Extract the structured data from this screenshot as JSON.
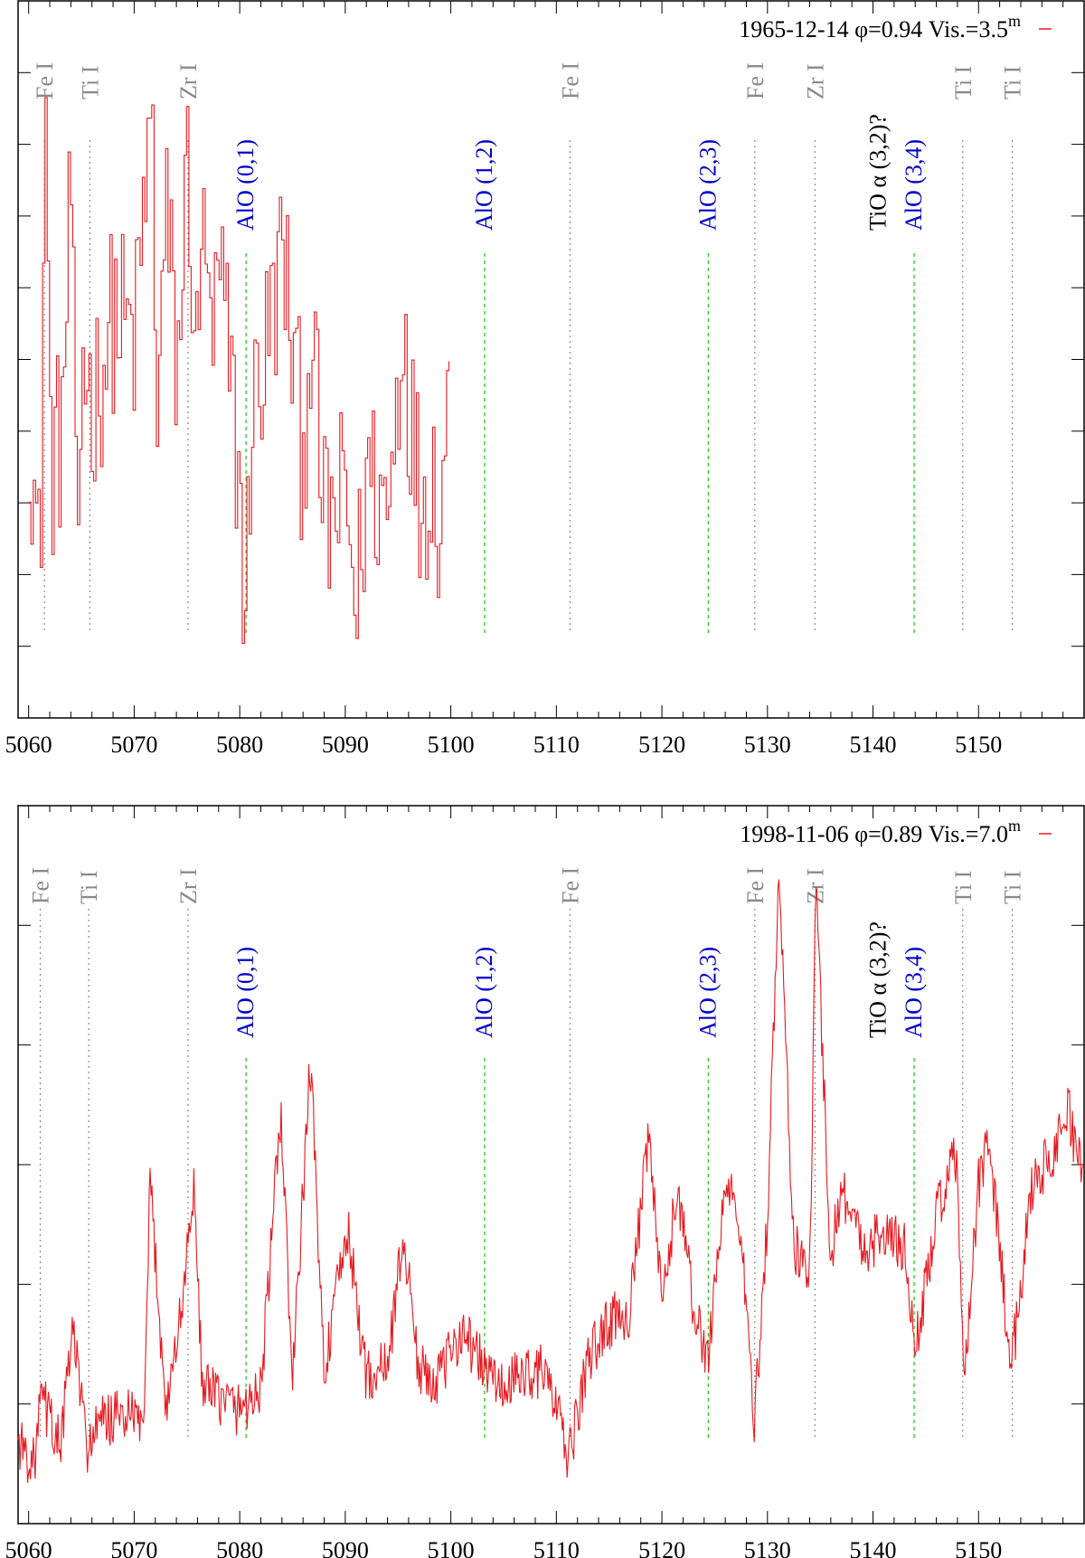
{
  "colors": {
    "spectrum": "#e8191f",
    "atomic_line": "#8a8a8a",
    "atomic_label": "#8a8a8a",
    "molecular_line": "#33cc33",
    "molecular_label": "#0000cc",
    "tio_label": "#000000",
    "frame": "#000000"
  },
  "chart_data": [
    {
      "type": "line",
      "title": "",
      "legend": {
        "date": "1965-12-14",
        "phase": "φ=0.94",
        "vis": "Vis.=3.5",
        "vis_sup": "m",
        "placement": "top-right"
      },
      "xlabel": "",
      "ylabel": "",
      "xlim": [
        5059,
        5160
      ],
      "ylim": [
        0,
        1
      ],
      "xticks": [
        "5060",
        "5070",
        "5080",
        "5090",
        "5100",
        "5110",
        "5120",
        "5130",
        "5140",
        "5150"
      ],
      "spectrum": {
        "name": "1965-12-14",
        "x_range": [
          5060,
          5100
        ],
        "style": "steps",
        "x": [
          5060,
          5061,
          5061.5,
          5062,
          5063,
          5064,
          5064.5,
          5065,
          5066,
          5068,
          5070,
          5071,
          5071.6,
          5072,
          5073,
          5074,
          5075,
          5076,
          5076.5,
          5077,
          5078,
          5079,
          5080,
          5080.5,
          5081,
          5082,
          5084,
          5086,
          5086.5,
          5088,
          5090,
          5091,
          5092,
          5094,
          5095.5,
          5096,
          5097,
          5098,
          5099,
          5099.5
        ],
        "y": [
          0.45,
          0.15,
          0.98,
          0.35,
          0.4,
          0.82,
          0.1,
          0.55,
          0.45,
          0.6,
          0.55,
          0.8,
          0.92,
          0.45,
          0.75,
          0.5,
          0.85,
          0.45,
          0.88,
          0.5,
          0.65,
          0.5,
          0.3,
          0.08,
          0.45,
          0.5,
          0.7,
          0.35,
          0.6,
          0.25,
          0.3,
          0.12,
          0.35,
          0.28,
          0.62,
          0.45,
          0.3,
          0.35,
          0.28,
          0.45
        ]
      },
      "atomic_lines": [
        {
          "label": "Fe I",
          "x": 5061.5
        },
        {
          "label": "Ti I",
          "x": 5065.8
        },
        {
          "label": "Zr I",
          "x": 5075.1
        },
        {
          "label": "Fe I",
          "x": 5111.3
        },
        {
          "label": "Fe I",
          "x": 5128.8
        },
        {
          "label": "Zr I",
          "x": 5134.5
        },
        {
          "label": "Ti I",
          "x": 5148.5
        },
        {
          "label": "Ti I",
          "x": 5153.2
        }
      ],
      "molecular_bands": [
        {
          "label": "AlO (0,1)",
          "x": 5080.6
        },
        {
          "label": "AlO (1,2)",
          "x": 5103.2
        },
        {
          "label": "AlO (2,3)",
          "x": 5124.4
        },
        {
          "label": "AlO (3,4)",
          "x": 5143.9
        }
      ],
      "tio_label": {
        "text": "TiO α (3,2)?",
        "x": 5140.5
      }
    },
    {
      "type": "line",
      "title": "",
      "legend": {
        "date": "1998-11-06",
        "phase": "φ=0.89",
        "vis": "Vis.=7.0",
        "vis_sup": "m",
        "placement": "top-right"
      },
      "xlabel": "",
      "ylabel": "",
      "xlim": [
        5059,
        5160
      ],
      "ylim": [
        0,
        1
      ],
      "xticks": [
        "5060",
        "5070",
        "5080",
        "5090",
        "5100",
        "5110",
        "5120",
        "5130",
        "5140",
        "5150"
      ],
      "spectrum": {
        "name": "1998-11-06",
        "x_range": [
          5059,
          5160
        ],
        "style": "line",
        "x": [
          5059,
          5060.5,
          5061.2,
          5063,
          5064.2,
          5065.5,
          5067,
          5069,
          5071,
          5071.5,
          5073,
          5074.5,
          5075.6,
          5076.5,
          5078,
          5080,
          5082,
          5083.9,
          5085,
          5086.7,
          5088,
          5090.2,
          5092,
          5094,
          5095.5,
          5097,
          5099,
          5101,
          5103,
          5105,
          5107,
          5109,
          5111.2,
          5113,
          5115,
          5117,
          5118.8,
          5120,
          5121.5,
          5123,
          5124.3,
          5126,
          5127.3,
          5128.8,
          5130,
          5131.1,
          5132.5,
          5134,
          5134.6,
          5136,
          5137,
          5139,
          5141,
          5143,
          5144,
          5146,
          5148,
          5148.6,
          5150,
          5151,
          5152,
          5153.1,
          5155,
          5157,
          5158.5,
          5160
        ],
        "y": [
          0.09,
          0.05,
          0.16,
          0.08,
          0.27,
          0.08,
          0.12,
          0.13,
          0.12,
          0.51,
          0.14,
          0.3,
          0.5,
          0.17,
          0.16,
          0.14,
          0.17,
          0.62,
          0.18,
          0.7,
          0.2,
          0.43,
          0.19,
          0.21,
          0.42,
          0.2,
          0.19,
          0.27,
          0.21,
          0.17,
          0.2,
          0.2,
          0.06,
          0.22,
          0.28,
          0.3,
          0.58,
          0.3,
          0.5,
          0.3,
          0.22,
          0.5,
          0.45,
          0.12,
          0.45,
          1.0,
          0.4,
          0.35,
          0.98,
          0.38,
          0.5,
          0.4,
          0.42,
          0.4,
          0.23,
          0.45,
          0.55,
          0.16,
          0.5,
          0.57,
          0.4,
          0.2,
          0.5,
          0.55,
          0.62,
          0.5
        ]
      },
      "atomic_lines": [
        {
          "label": "Fe I",
          "x": 5061.1
        },
        {
          "label": "Ti I",
          "x": 5065.7
        },
        {
          "label": "Zr I",
          "x": 5075.1
        },
        {
          "label": "Fe I",
          "x": 5111.3
        },
        {
          "label": "Fe I",
          "x": 5128.8
        },
        {
          "label": "Zr I",
          "x": 5134.5
        },
        {
          "label": "Ti I",
          "x": 5148.5
        },
        {
          "label": "Ti I",
          "x": 5153.2
        }
      ],
      "molecular_bands": [
        {
          "label": "AlO (0,1)",
          "x": 5080.6
        },
        {
          "label": "AlO (1,2)",
          "x": 5103.2
        },
        {
          "label": "AlO (2,3)",
          "x": 5124.4
        },
        {
          "label": "AlO (3,4)",
          "x": 5143.9
        }
      ],
      "tio_label": {
        "text": "TiO α (3,2)?",
        "x": 5140.5
      }
    }
  ]
}
